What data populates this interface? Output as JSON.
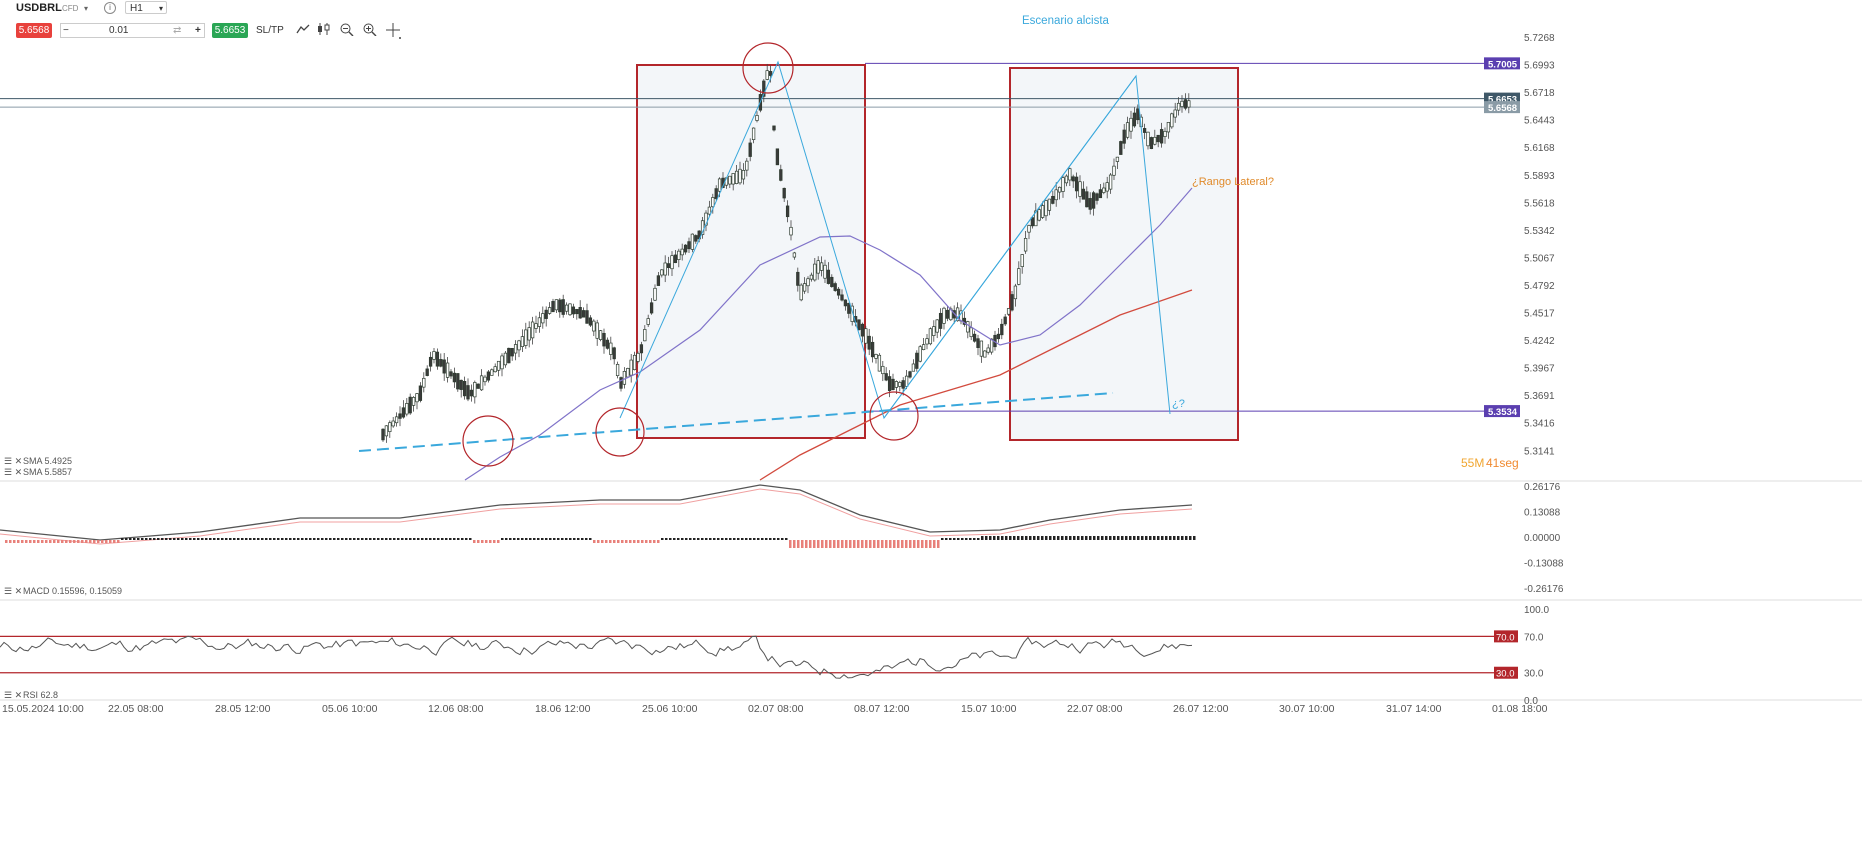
{
  "toolbar": {
    "symbol": "USDBRL",
    "instrument_type": "CFD",
    "info": "i",
    "timeframe": "H1",
    "sell_price": "5.6568",
    "buy_price": "5.6653",
    "minus": "−",
    "plus": "+",
    "volume": "0.01",
    "swap_icon": "⇄",
    "sltp_label": "SL/TP",
    "icons": [
      "line-chart-icon",
      "candle-chart-icon",
      "zoom-out-icon",
      "zoom-in-icon",
      "crosshair-icon"
    ]
  },
  "annotations": {
    "scenario_title": "Escenario alcista",
    "range_label": "¿Rango Lateral?",
    "question_label": "¿?"
  },
  "timer": {
    "minutes": "55M",
    "seconds": "41seg"
  },
  "price_axis": {
    "ticks": [
      "5.7268",
      "5.6993",
      "5.6718",
      "5.6443",
      "5.6168",
      "5.5893",
      "5.5618",
      "5.5342",
      "5.5067",
      "5.4792",
      "5.4517",
      "5.4242",
      "5.3967",
      "5.3691",
      "5.3416",
      "5.3141"
    ],
    "badges": [
      {
        "text": "5.7005",
        "value": 5.7005,
        "color": "#5b3fb0"
      },
      {
        "text": "5.6653",
        "value": 5.6653,
        "color": "#3f5868"
      },
      {
        "text": "5.6568",
        "value": 5.6568,
        "color": "#8a9ba6"
      },
      {
        "text": "5.3534",
        "value": 5.3534,
        "color": "#5b3fb0"
      }
    ]
  },
  "legends": {
    "sma1": "SMA 5.4925",
    "sma2": "SMA 5.5857",
    "macd": "MACD 0.15596, 0.15059",
    "rsi": "RSI 62.8"
  },
  "macd_axis": [
    "0.26176",
    "0.13088",
    "0.00000",
    "-0.13088",
    "-0.26176"
  ],
  "rsi_axis": {
    "ticks": [
      "100.0",
      "70.0",
      "30.0",
      "0.0"
    ],
    "badges": [
      {
        "text": "70.0",
        "value": 70
      },
      {
        "text": "30.0",
        "value": 30
      }
    ]
  },
  "time_axis": [
    "15.05.2024 10:00",
    "22.05 08:00",
    "28.05 12:00",
    "05.06 10:00",
    "12.06 08:00",
    "18.06 12:00",
    "25.06 10:00",
    "02.07 08:00",
    "08.07 12:00",
    "15.07 10:00",
    "22.07 08:00",
    "26.07 12:00",
    "30.07 10:00",
    "31.07 14:00",
    "01.08 18:00"
  ],
  "colors": {
    "bull": "#2d3b2f",
    "bear": "#3a3a3a",
    "box": "#b3262b",
    "trend": "#3aa8dc",
    "sma_slow": "#d24b3e",
    "sma_fast": "#8073c9",
    "range_text": "#e08a2a",
    "timer_min": "#f0a630",
    "timer_sec": "#f08a30"
  }
}
